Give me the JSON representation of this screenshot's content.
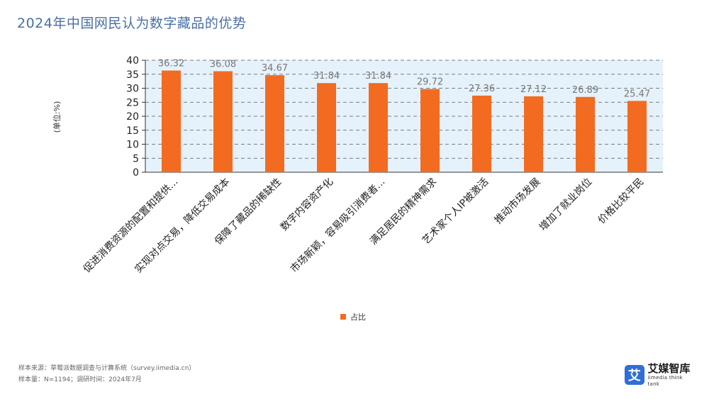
{
  "chart_data": {
    "type": "bar",
    "title": "2024年中国网民认为数字藏品的优势",
    "ylabel": "(单位:%)",
    "xlabel": "",
    "ylim": [
      0,
      40
    ],
    "yticks": [
      0,
      5,
      10,
      15,
      20,
      25,
      30,
      35,
      40
    ],
    "grid": true,
    "legend_position": "bottom",
    "categories": [
      "促进消费资源的配置和提供...",
      "实现对点交易，降低交易成本",
      "保障了藏品的稀缺性",
      "数字内容资产化",
      "市场新颖，容易吸引消费者...",
      "满足居民的精神需求",
      "艺术家个人IP被激活",
      "推动市场发展",
      "增加了就业岗位",
      "价格比较平民"
    ],
    "series": [
      {
        "name": "占比",
        "color": "#f26b21",
        "values": [
          36.32,
          36.08,
          34.67,
          31.84,
          31.84,
          29.72,
          27.36,
          27.12,
          26.89,
          25.47
        ]
      }
    ]
  },
  "footer": {
    "source": "样本来源：草莓派数据调查与计算系统（survey.iimedia.cn）",
    "sample": "样本量：N=1194；调研时间：2024年7月"
  },
  "logo": {
    "mark": "艾",
    "name_cn": "艾媒智库",
    "name_en": "iimedia think tank"
  },
  "colors": {
    "plot_background": "#e6f2fb",
    "title": "#4a6fa5"
  }
}
